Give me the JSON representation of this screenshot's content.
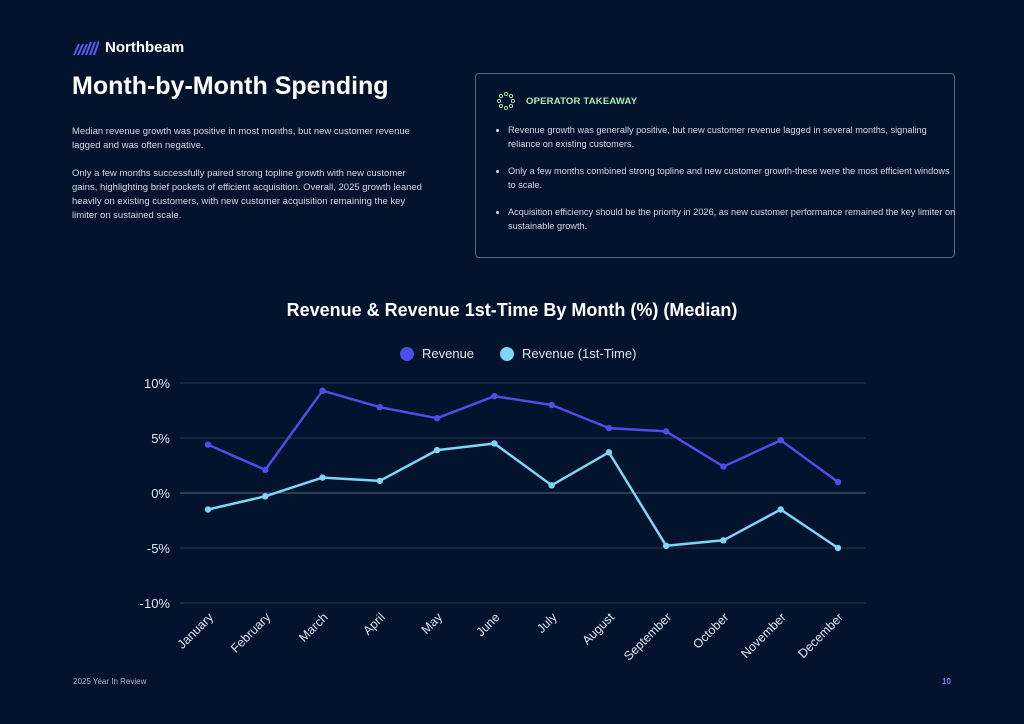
{
  "brand": {
    "name": "Northbeam",
    "color": "#5a5cf0"
  },
  "page_title": "Month-by-Month Spending",
  "intro": [
    "Median revenue growth was positive in most months, but new customer revenue lagged and was often negative.",
    "Only a few months successfully paired strong topline growth with new customer gains, highlighting brief pockets of efficient acquisition. Overall, 2025 growth leaned heavily on existing customers, with new customer acquisition remaining the key limiter on sustained scale."
  ],
  "takeaway": {
    "title": "OPERATOR TAKEAWAY",
    "icon": "dotted-circle-icon",
    "bullets": [
      "Revenue growth was generally positive, but new customer revenue lagged in several months, signaling reliance on existing customers.",
      "Only a few months combined strong topline and new customer growth-these were the most efficient windows to scale.",
      "Acquisition efficiency should be the priority in 2026, as new customer performance remained the key limiter on sustainable growth."
    ]
  },
  "chart_data": {
    "type": "line",
    "title": "Revenue & Revenue 1st-Time By Month (%) (Median)",
    "legend_placement": "top",
    "grid": true,
    "categories": [
      "January",
      "February",
      "March",
      "April",
      "May",
      "June",
      "July",
      "August",
      "September",
      "October",
      "November",
      "December"
    ],
    "series": [
      {
        "name": "Revenue",
        "color": "#4a4fe8",
        "values": [
          4.4,
          2.1,
          9.3,
          7.8,
          6.8,
          8.8,
          8.0,
          5.9,
          5.6,
          2.4,
          4.8,
          1.0
        ]
      },
      {
        "name": "Revenue (1st-Time)",
        "color": "#7dd6f5",
        "values": [
          -1.5,
          -0.3,
          1.4,
          1.1,
          3.9,
          4.5,
          0.7,
          3.7,
          -4.8,
          -4.3,
          -1.5,
          -5.0
        ]
      }
    ],
    "ylim": [
      -10,
      10
    ],
    "yticks": [
      "10%",
      "5%",
      "0%",
      "-5%",
      "-10%"
    ],
    "ytick_values": [
      10,
      5,
      0,
      -5,
      -10
    ]
  },
  "footer": {
    "left": "2025 Year In Review",
    "page": "10"
  }
}
